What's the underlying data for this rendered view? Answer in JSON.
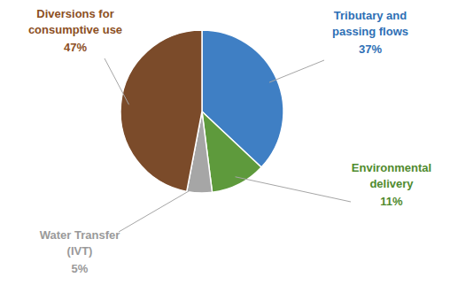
{
  "chart_data": {
    "type": "pie",
    "categories": [
      "Tributary and passing flows",
      "Environmental delivery",
      "Water Transfer (IVT)",
      "Diversions for consumptive use"
    ],
    "values": [
      37,
      11,
      5,
      47
    ],
    "value_labels": [
      "37%",
      "11%",
      "5%",
      "47%"
    ],
    "colors": [
      "#3f7fc4",
      "#5e9a3c",
      "#a6a6a6",
      "#7b4b2a"
    ],
    "data_labels": true
  }
}
